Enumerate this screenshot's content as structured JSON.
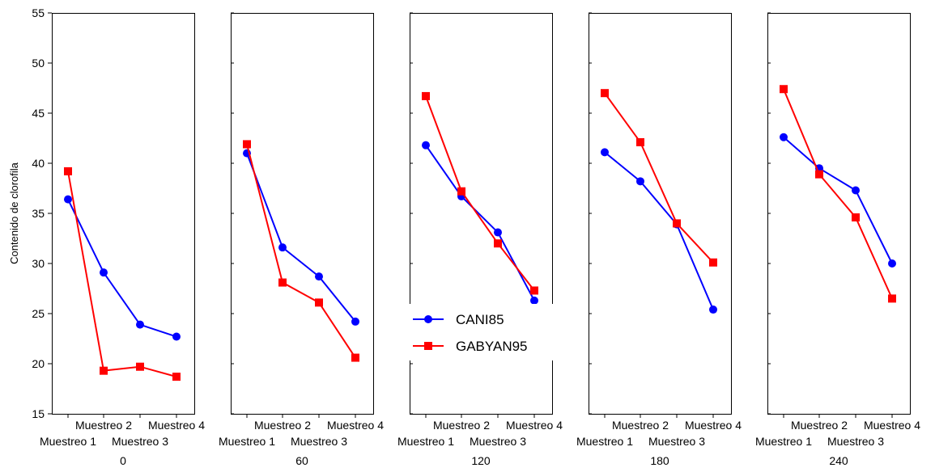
{
  "chart_data": {
    "type": "line",
    "title": "",
    "xlabel": "",
    "ylabel": "Contenido de clorofila",
    "ylim": [
      15,
      55
    ],
    "yticks": [
      15,
      20,
      25,
      30,
      35,
      40,
      45,
      50,
      55
    ],
    "grid": false,
    "legend_placement": "center",
    "categories": [
      "Muestreo 1",
      "Muestreo 2",
      "Muestreo 3",
      "Muestreo 4"
    ],
    "panels": [
      {
        "label": "0",
        "series": [
          {
            "name": "CANI85",
            "values": [
              36.4,
              29.1,
              23.9,
              22.7
            ]
          },
          {
            "name": "GABYAN95",
            "values": [
              39.2,
              19.3,
              19.7,
              18.7
            ]
          }
        ]
      },
      {
        "label": "60",
        "series": [
          {
            "name": "CANI85",
            "values": [
              41.0,
              31.6,
              28.7,
              24.2
            ]
          },
          {
            "name": "GABYAN95",
            "values": [
              41.9,
              28.1,
              26.1,
              20.6
            ]
          }
        ]
      },
      {
        "label": "120",
        "series": [
          {
            "name": "CANI85",
            "values": [
              41.8,
              36.7,
              33.1,
              26.3
            ]
          },
          {
            "name": "GABYAN95",
            "values": [
              46.7,
              37.2,
              32.0,
              27.3
            ]
          }
        ]
      },
      {
        "label": "180",
        "series": [
          {
            "name": "CANI85",
            "values": [
              41.1,
              38.2,
              33.9,
              25.4
            ]
          },
          {
            "name": "GABYAN95",
            "values": [
              47.0,
              42.1,
              34.0,
              30.1
            ]
          }
        ]
      },
      {
        "label": "240",
        "series": [
          {
            "name": "CANI85",
            "values": [
              42.6,
              39.5,
              37.3,
              30.0
            ]
          },
          {
            "name": "GABYAN95",
            "values": [
              47.4,
              38.9,
              34.6,
              26.5
            ]
          }
        ]
      }
    ],
    "legend": [
      {
        "name": "CANI85",
        "marker": "circle"
      },
      {
        "name": "GABYAN95",
        "marker": "square"
      }
    ],
    "colors": {
      "CANI85": "#0000ff",
      "GABYAN95": "#ff0000"
    }
  }
}
